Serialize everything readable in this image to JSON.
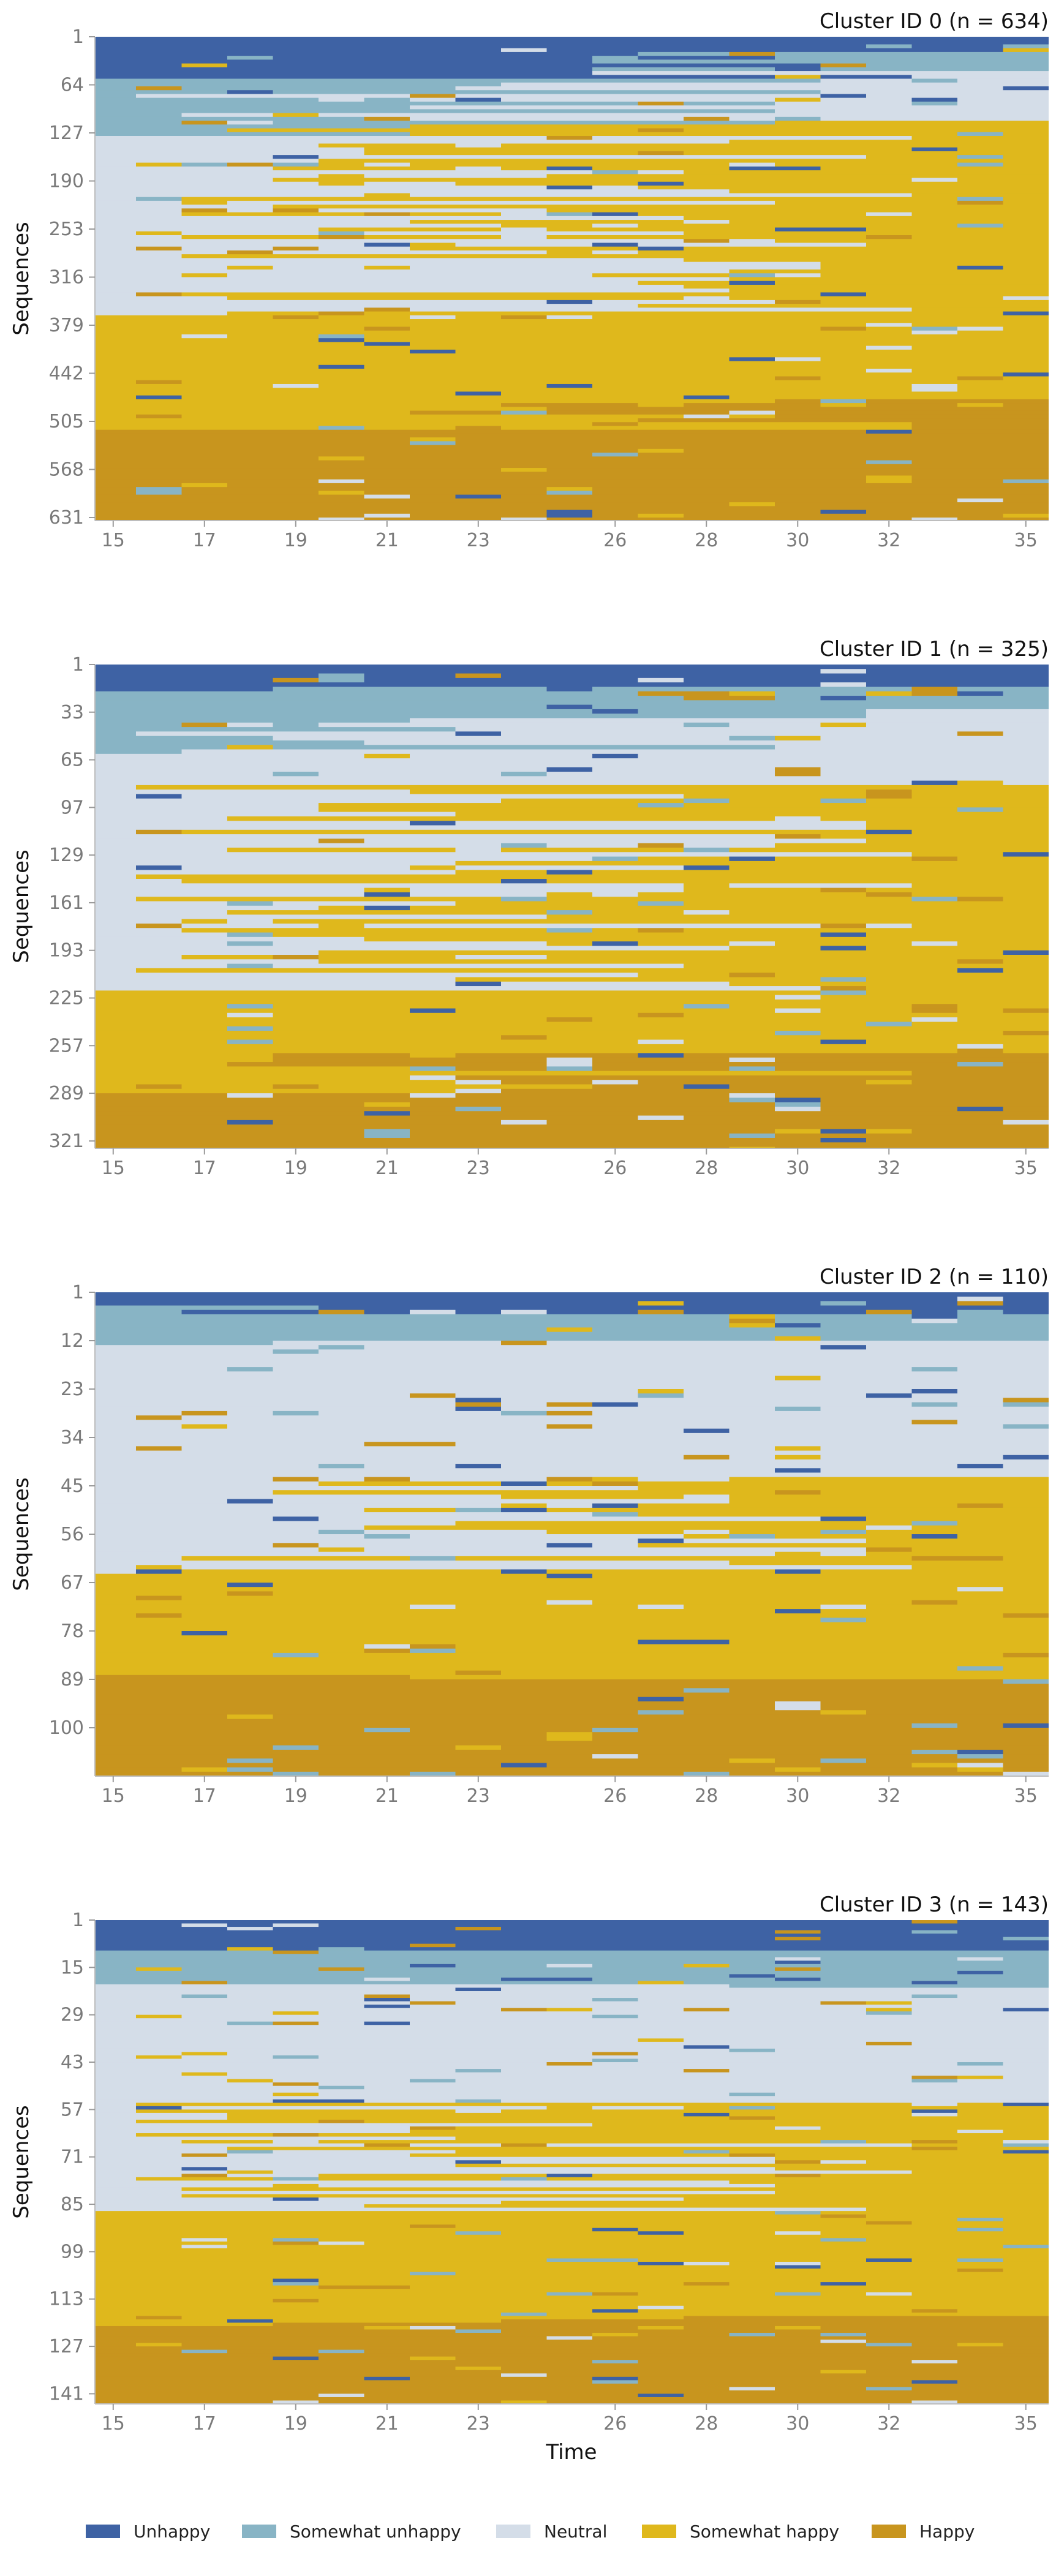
{
  "chart_data": {
    "type": "heatmap",
    "description_kind": "sequence index plot",
    "states": [
      {
        "name": "Unhappy",
        "color": "#3e62a4"
      },
      {
        "name": "Somewhat unhappy",
        "color": "#88b4c5"
      },
      {
        "name": "Neutral",
        "color": "#d4dde8"
      },
      {
        "name": "Somewhat happy",
        "color": "#dfb81c"
      },
      {
        "name": "Happy",
        "color": "#c8951e"
      }
    ],
    "x_ticks": [
      15,
      17,
      19,
      21,
      23,
      26,
      28,
      30,
      32,
      35
    ],
    "xlim": [
      14.6,
      35.5
    ],
    "xlabel": "Time",
    "ylabel": "Sequences",
    "legend_position": "bottom",
    "panels": [
      {
        "title": "Cluster ID 0 (n = 634)",
        "n": 634,
        "y_ticks": [
          1,
          64,
          127,
          190,
          253,
          316,
          379,
          442,
          505,
          568,
          631
        ],
        "state_share_first_year": [
          0.08,
          0.12,
          0.37,
          0.24,
          0.19
        ],
        "state_share_last_year": [
          0.03,
          0.04,
          0.1,
          0.58,
          0.25
        ]
      },
      {
        "title": "Cluster ID 1 (n = 325)",
        "n": 325,
        "y_ticks": [
          1,
          33,
          65,
          97,
          129,
          161,
          193,
          225,
          257,
          289,
          321
        ],
        "state_share_first_year": [
          0.05,
          0.13,
          0.49,
          0.21,
          0.12
        ],
        "state_share_last_year": [
          0.04,
          0.05,
          0.16,
          0.55,
          0.2
        ]
      },
      {
        "title": "Cluster ID 2 (n = 110)",
        "n": 110,
        "y_ticks": [
          1,
          12,
          23,
          34,
          45,
          56,
          67,
          78,
          89,
          100
        ],
        "state_share_first_year": [
          0.03,
          0.08,
          0.47,
          0.21,
          0.21
        ],
        "state_share_last_year": [
          0.05,
          0.05,
          0.28,
          0.42,
          0.2
        ]
      },
      {
        "title": "Cluster ID 3 (n = 143)",
        "n": 143,
        "y_ticks": [
          1,
          15,
          29,
          43,
          57,
          71,
          85,
          99,
          113,
          127,
          141
        ],
        "state_share_first_year": [
          0.06,
          0.07,
          0.47,
          0.24,
          0.16
        ],
        "state_share_last_year": [
          0.06,
          0.08,
          0.24,
          0.44,
          0.18
        ]
      }
    ]
  }
}
